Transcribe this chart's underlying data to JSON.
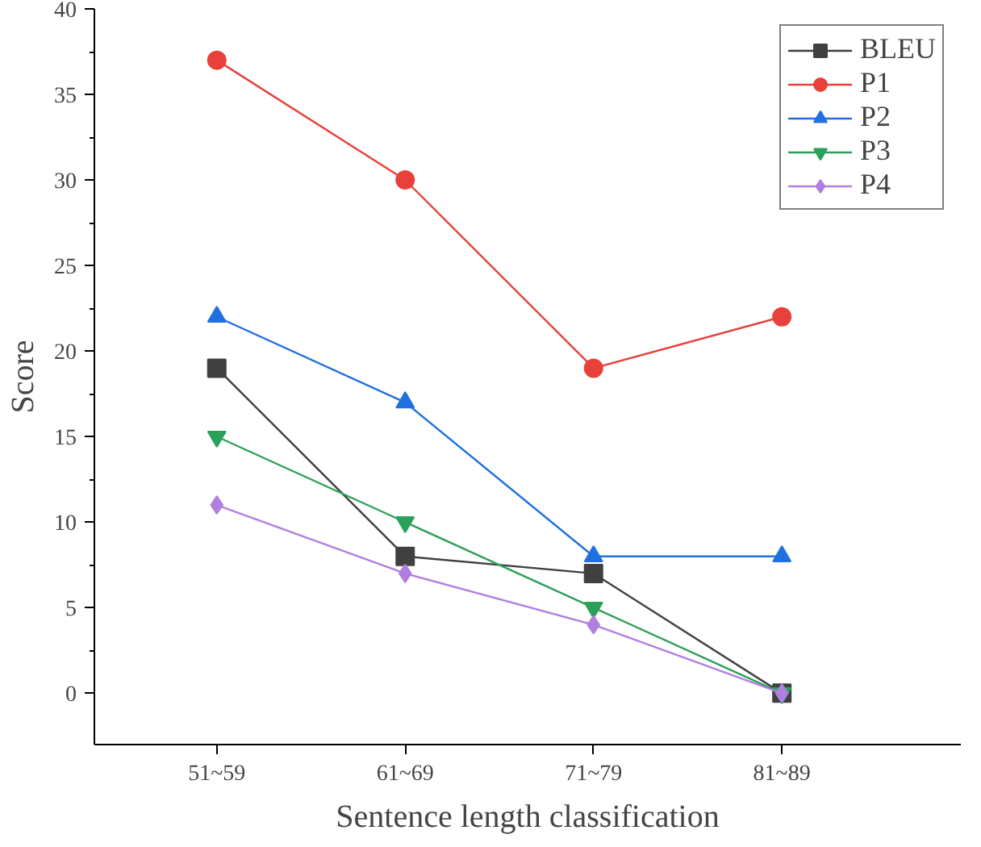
{
  "chart_data": {
    "type": "line",
    "xlabel": "Sentence length classification",
    "ylabel": "Score",
    "categories": [
      "51~59",
      "61~69",
      "71~79",
      "81~89"
    ],
    "series": [
      {
        "name": "BLEU",
        "color": "#404040",
        "marker": "square",
        "values": [
          19,
          8,
          7,
          0
        ]
      },
      {
        "name": "P1",
        "color": "#e8413c",
        "marker": "circle",
        "values": [
          37,
          30,
          19,
          22
        ]
      },
      {
        "name": "P2",
        "color": "#2170e0",
        "marker": "triangle",
        "values": [
          22,
          17,
          8,
          8
        ]
      },
      {
        "name": "P3",
        "color": "#2ca05a",
        "marker": "triangle_down",
        "values": [
          15,
          10,
          5,
          0
        ]
      },
      {
        "name": "P4",
        "color": "#b07fe0",
        "marker": "diamond",
        "values": [
          11,
          7,
          4,
          0
        ]
      }
    ],
    "ylim": [
      -3,
      40
    ],
    "yticks": [
      0,
      5,
      10,
      15,
      20,
      25,
      30,
      35,
      40
    ],
    "grid": false,
    "legend": "top right",
    "line_style": "solid"
  }
}
